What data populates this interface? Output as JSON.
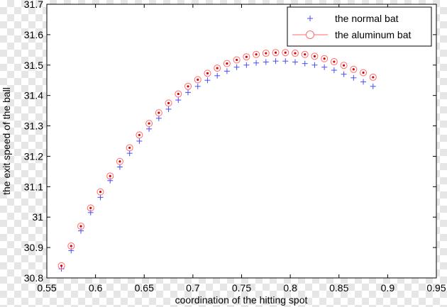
{
  "chart_data": {
    "type": "scatter",
    "title": "",
    "xlabel": "coordination of the hitting spot",
    "ylabel": "the exit speed of the ball",
    "xlim": [
      0.55,
      0.95
    ],
    "ylim": [
      30.8,
      31.7
    ],
    "xticks": [
      "0.55",
      "0.6",
      "0.65",
      "0.7",
      "0.75",
      "0.8",
      "0.85",
      "0.9",
      "0.95"
    ],
    "yticks": [
      "30.8",
      "30.9",
      "31",
      "31.1",
      "31.2",
      "31.3",
      "31.4",
      "31.5",
      "31.6",
      "31.7"
    ],
    "grid": false,
    "legend_position": "top-right",
    "x": [
      0.565,
      0.575,
      0.585,
      0.595,
      0.605,
      0.615,
      0.625,
      0.635,
      0.645,
      0.655,
      0.665,
      0.675,
      0.685,
      0.695,
      0.705,
      0.715,
      0.725,
      0.735,
      0.745,
      0.755,
      0.765,
      0.775,
      0.785,
      0.795,
      0.805,
      0.815,
      0.825,
      0.835,
      0.845,
      0.855,
      0.865,
      0.875,
      0.885
    ],
    "series": [
      {
        "name": "the normal bat",
        "marker": "plus",
        "color": "#4a4aff",
        "values": [
          30.83,
          30.89,
          30.955,
          31.015,
          31.065,
          31.12,
          31.165,
          31.21,
          31.25,
          31.29,
          31.325,
          31.355,
          31.385,
          31.41,
          31.43,
          31.45,
          31.465,
          31.48,
          31.493,
          31.5,
          31.507,
          31.51,
          31.513,
          31.513,
          31.51,
          31.505,
          31.5,
          31.493,
          31.483,
          31.47,
          31.458,
          31.445,
          31.43
        ]
      },
      {
        "name": "the aluminum bat",
        "marker": "circle-dot",
        "color": "#ff6b6b",
        "center_color": "#e00000",
        "values": [
          30.84,
          30.905,
          30.97,
          31.03,
          31.083,
          31.135,
          31.183,
          31.228,
          31.27,
          31.308,
          31.343,
          31.375,
          31.405,
          31.43,
          31.452,
          31.473,
          31.49,
          31.505,
          31.517,
          31.527,
          31.535,
          31.539,
          31.541,
          31.541,
          31.539,
          31.535,
          31.529,
          31.521,
          31.511,
          31.499,
          31.486,
          31.475,
          31.46
        ]
      }
    ]
  }
}
